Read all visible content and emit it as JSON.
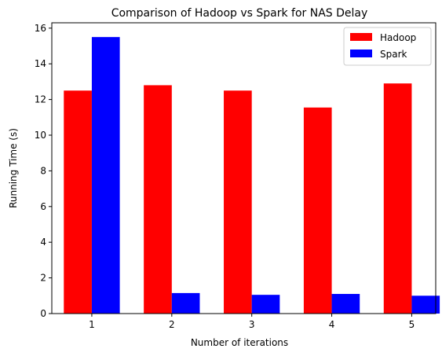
{
  "chart_data": {
    "type": "bar",
    "title": "Comparison of Hadoop vs Spark for NAS Delay",
    "xlabel": "Number of iterations",
    "ylabel": "Running Time (s)",
    "categories": [
      "1",
      "2",
      "3",
      "4",
      "5"
    ],
    "series": [
      {
        "name": "Hadoop",
        "color": "#ff0000",
        "values": [
          12.5,
          12.8,
          12.5,
          11.55,
          12.9
        ]
      },
      {
        "name": "Spark",
        "color": "#0000ff",
        "values": [
          15.5,
          1.15,
          1.05,
          1.1,
          1.0
        ]
      }
    ],
    "ylim": [
      0,
      16.3
    ],
    "yticks": [
      "0",
      "2",
      "4",
      "6",
      "8",
      "10",
      "12",
      "14",
      "16"
    ],
    "grid": false,
    "legend": "top-right"
  }
}
